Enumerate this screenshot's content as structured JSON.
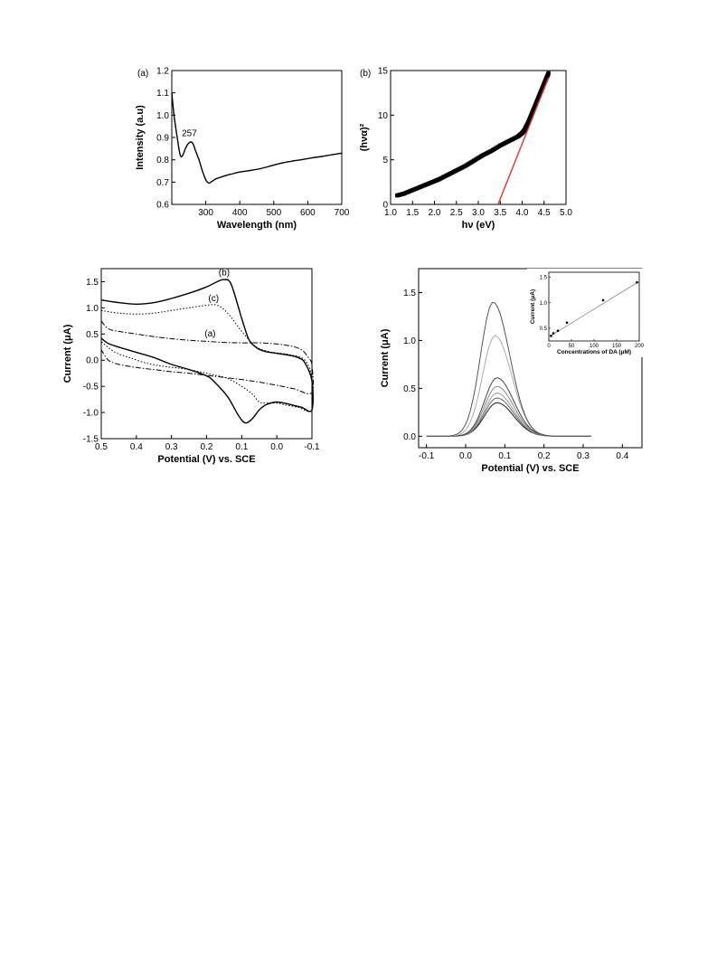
{
  "chart_data": [
    {
      "id": "uv",
      "type": "line",
      "panel_label": "(a)",
      "xlabel": "Wavelength (nm)",
      "ylabel": "Intensity (a.u)",
      "xlim": [
        200,
        700
      ],
      "ylim": [
        0.6,
        1.2
      ],
      "xticks": [
        300,
        400,
        500,
        600,
        700
      ],
      "yticks": [
        0.6,
        0.7,
        0.8,
        0.9,
        1.0,
        1.1,
        1.2
      ],
      "annotations": [
        {
          "text": "257",
          "x": 257,
          "y": 0.89
        }
      ],
      "series": [
        {
          "x": [
            200,
            205,
            210,
            215,
            220,
            225,
            230,
            235,
            240,
            245,
            250,
            257,
            263,
            270,
            280,
            290,
            300,
            305,
            310,
            315,
            320,
            330,
            340,
            360,
            380,
            400,
            430,
            460,
            490,
            520,
            550,
            580,
            610,
            640,
            670,
            700
          ],
          "y": [
            1.1,
            1.02,
            0.96,
            0.91,
            0.86,
            0.82,
            0.815,
            0.83,
            0.85,
            0.865,
            0.875,
            0.88,
            0.87,
            0.84,
            0.8,
            0.75,
            0.71,
            0.7,
            0.695,
            0.7,
            0.705,
            0.715,
            0.72,
            0.73,
            0.738,
            0.745,
            0.752,
            0.76,
            0.772,
            0.784,
            0.793,
            0.8,
            0.808,
            0.815,
            0.822,
            0.83
          ]
        }
      ]
    },
    {
      "id": "tauc",
      "type": "scatter",
      "panel_label": "(b)",
      "xlabel": "hν (eV)",
      "ylabel": "(hνα)²",
      "xlim": [
        1.0,
        5.0
      ],
      "ylim": [
        0,
        15
      ],
      "xticks": [
        1.0,
        1.5,
        2.0,
        2.5,
        3.0,
        3.5,
        4.0,
        4.5,
        5.0
      ],
      "yticks": [
        0,
        5,
        10,
        15
      ],
      "series": [
        {
          "name": "",
          "x": [
            1.15,
            1.3,
            1.5,
            1.7,
            1.9,
            2.1,
            2.3,
            2.5,
            2.7,
            2.9,
            3.1,
            3.3,
            3.5,
            3.7,
            3.9,
            4.0,
            4.05,
            4.1,
            4.15,
            4.2,
            4.25,
            4.3,
            4.35,
            4.4,
            4.45,
            4.5,
            4.55,
            4.6
          ],
          "y": [
            1.0,
            1.2,
            1.6,
            2.0,
            2.4,
            2.8,
            3.3,
            3.8,
            4.3,
            4.9,
            5.5,
            6.0,
            6.6,
            7.1,
            7.6,
            8.0,
            8.3,
            8.8,
            9.3,
            9.9,
            10.5,
            11.1,
            11.7,
            12.3,
            12.9,
            13.5,
            14.1,
            14.7
          ]
        }
      ],
      "fit_line": {
        "x": [
          3.45,
          4.6
        ],
        "y": [
          0,
          14.2
        ],
        "color": "#e8312a"
      }
    },
    {
      "id": "cv",
      "type": "line",
      "xlabel": "Potential (V) vs. SCE",
      "ylabel": "Current (μA)",
      "xlim": [
        0.5,
        -0.1
      ],
      "ylim": [
        -1.5,
        1.75
      ],
      "xticks": [
        0.5,
        0.4,
        0.3,
        0.2,
        0.1,
        0.0,
        -0.1
      ],
      "yticks": [
        -1.5,
        -1.0,
        -0.5,
        0.0,
        0.5,
        1.0,
        1.5
      ],
      "labels": [
        {
          "text": "(b)",
          "x": 0.15,
          "y": 1.62
        },
        {
          "text": "(c)",
          "x": 0.18,
          "y": 1.13
        },
        {
          "text": "(a)",
          "x": 0.19,
          "y": 0.45
        }
      ],
      "series": [
        {
          "name": "",
          "style": "solid",
          "x": [
            0.5,
            0.45,
            0.4,
            0.35,
            0.3,
            0.25,
            0.2,
            0.17,
            0.15,
            0.13,
            0.1,
            0.08,
            0.06,
            0.04,
            0.02,
            0.0,
            -0.03,
            -0.06,
            -0.08,
            -0.1,
            -0.1,
            -0.07,
            -0.04,
            0.0,
            0.03,
            0.05,
            0.07,
            0.09,
            0.11,
            0.14,
            0.18,
            0.2,
            0.25,
            0.3,
            0.35,
            0.4,
            0.45,
            0.48,
            0.5
          ],
          "y": [
            1.15,
            1.1,
            1.07,
            1.1,
            1.18,
            1.28,
            1.4,
            1.5,
            1.54,
            1.45,
            0.8,
            0.4,
            0.25,
            0.18,
            0.15,
            0.13,
            0.1,
            0.05,
            -0.05,
            -0.4,
            -0.95,
            -0.9,
            -0.85,
            -0.8,
            -0.85,
            -0.95,
            -1.12,
            -1.2,
            -1.05,
            -0.7,
            -0.4,
            -0.3,
            -0.18,
            -0.08,
            0.05,
            0.15,
            0.25,
            0.32,
            0.42
          ]
        },
        {
          "name": "",
          "style": "dotted",
          "x": [
            0.5,
            0.45,
            0.4,
            0.35,
            0.3,
            0.25,
            0.2,
            0.17,
            0.14,
            0.1,
            0.07,
            0.05,
            0.02,
            0.0,
            -0.04,
            -0.08,
            -0.1,
            -0.1,
            -0.06,
            -0.02,
            0.0,
            0.03,
            0.05,
            0.07,
            0.1,
            0.14,
            0.18,
            0.22,
            0.27,
            0.32,
            0.37,
            0.42,
            0.46,
            0.5
          ],
          "y": [
            0.95,
            0.9,
            0.88,
            0.9,
            0.95,
            1.0,
            1.05,
            1.05,
            0.9,
            0.55,
            0.32,
            0.22,
            0.16,
            0.14,
            0.1,
            0.0,
            -0.35,
            -0.95,
            -0.9,
            -0.85,
            -0.82,
            -0.82,
            -0.8,
            -0.65,
            -0.5,
            -0.35,
            -0.28,
            -0.22,
            -0.16,
            -0.12,
            -0.06,
            0.05,
            0.15,
            0.35
          ]
        },
        {
          "name": "",
          "style": "dashdot",
          "x": [
            0.5,
            0.48,
            0.45,
            0.4,
            0.35,
            0.3,
            0.25,
            0.2,
            0.15,
            0.1,
            0.05,
            0.0,
            -0.04,
            -0.07,
            -0.09,
            -0.1,
            -0.1,
            -0.05,
            0.0,
            0.05,
            0.1,
            0.15,
            0.2,
            0.25,
            0.3,
            0.35,
            0.4,
            0.45,
            0.48,
            0.5
          ],
          "y": [
            0.75,
            0.6,
            0.55,
            0.5,
            0.45,
            0.41,
            0.38,
            0.36,
            0.34,
            0.33,
            0.33,
            0.31,
            0.27,
            0.2,
            0.05,
            -0.1,
            -0.62,
            -0.55,
            -0.48,
            -0.42,
            -0.37,
            -0.33,
            -0.29,
            -0.25,
            -0.22,
            -0.18,
            -0.14,
            -0.08,
            0.0,
            0.2
          ]
        }
      ]
    },
    {
      "id": "dpv",
      "type": "line",
      "xlabel": "Potential (V) vs. SCE",
      "ylabel": "Current (μA)",
      "xlim": [
        -0.12,
        0.45
      ],
      "ylim": [
        -0.12,
        1.75
      ],
      "xticks": [
        -0.1,
        0.0,
        0.1,
        0.2,
        0.3,
        0.4
      ],
      "yticks": [
        0.0,
        0.5,
        1.0,
        1.5
      ],
      "peaks": [
        {
          "peak_x": 0.08,
          "peak_y": 0.35,
          "color": "#222222"
        },
        {
          "peak_x": 0.08,
          "peak_y": 0.4,
          "color": "#666666"
        },
        {
          "peak_x": 0.08,
          "peak_y": 0.45,
          "color": "#999999"
        },
        {
          "peak_x": 0.08,
          "peak_y": 0.52,
          "color": "#888888"
        },
        {
          "peak_x": 0.08,
          "peak_y": 0.61,
          "color": "#444444"
        },
        {
          "peak_x": 0.075,
          "peak_y": 1.05,
          "color": "#aaaaaa"
        },
        {
          "peak_x": 0.07,
          "peak_y": 1.4,
          "color": "#555555"
        }
      ],
      "curve_start": -0.1,
      "curve_end": 0.32,
      "inset": {
        "type": "scatter",
        "xlabel": "Concentrations of DA (μM)",
        "ylabel": "Current (μA)",
        "xlim": [
          0,
          200
        ],
        "ylim": [
          0.25,
          1.6
        ],
        "xticks": [
          0,
          50,
          100,
          150,
          200
        ],
        "yticks": [
          0.5,
          1.0,
          1.5
        ],
        "x": [
          5,
          10,
          20,
          40,
          120,
          195
        ],
        "y": [
          0.35,
          0.4,
          0.45,
          0.61,
          1.05,
          1.4
        ],
        "fit": {
          "x": [
            0,
            200
          ],
          "y": [
            0.33,
            1.42
          ]
        }
      }
    }
  ]
}
